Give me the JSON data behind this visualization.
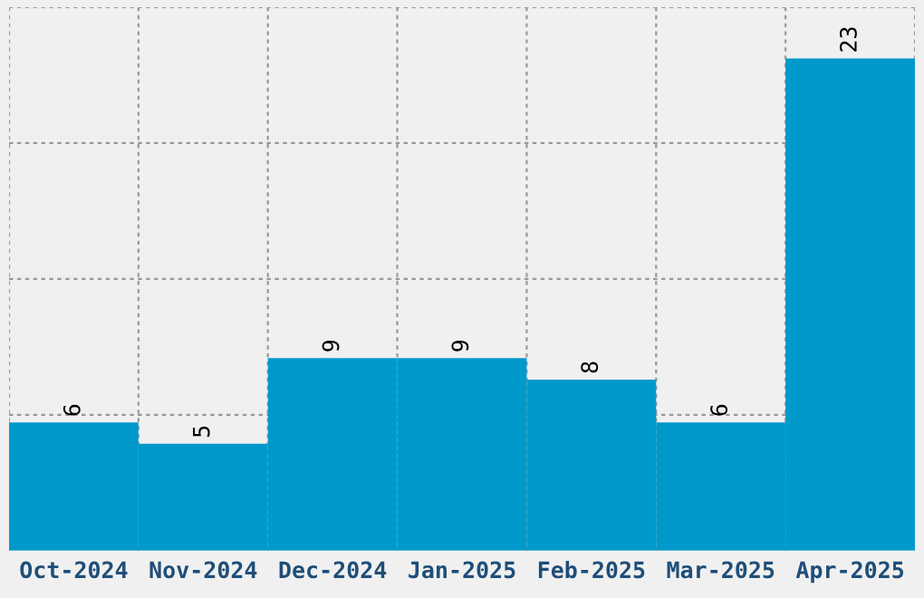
{
  "chart_data": {
    "type": "bar",
    "categories": [
      "Oct-2024",
      "Nov-2024",
      "Dec-2024",
      "Jan-2025",
      "Feb-2025",
      "Mar-2025",
      "Apr-2025"
    ],
    "values": [
      6,
      5,
      9,
      9,
      8,
      6,
      23
    ],
    "color": "#0099cc",
    "ylim": [
      0,
      25.4
    ],
    "yticks": [
      {
        "value": 6.35,
        "label": null
      },
      {
        "value": 12.7,
        "label": null
      },
      {
        "value": 19.05,
        "label": null
      },
      {
        "value": 25.4,
        "label": null
      }
    ],
    "tick_labels": "x",
    "data_labels": true,
    "grid": true
  }
}
